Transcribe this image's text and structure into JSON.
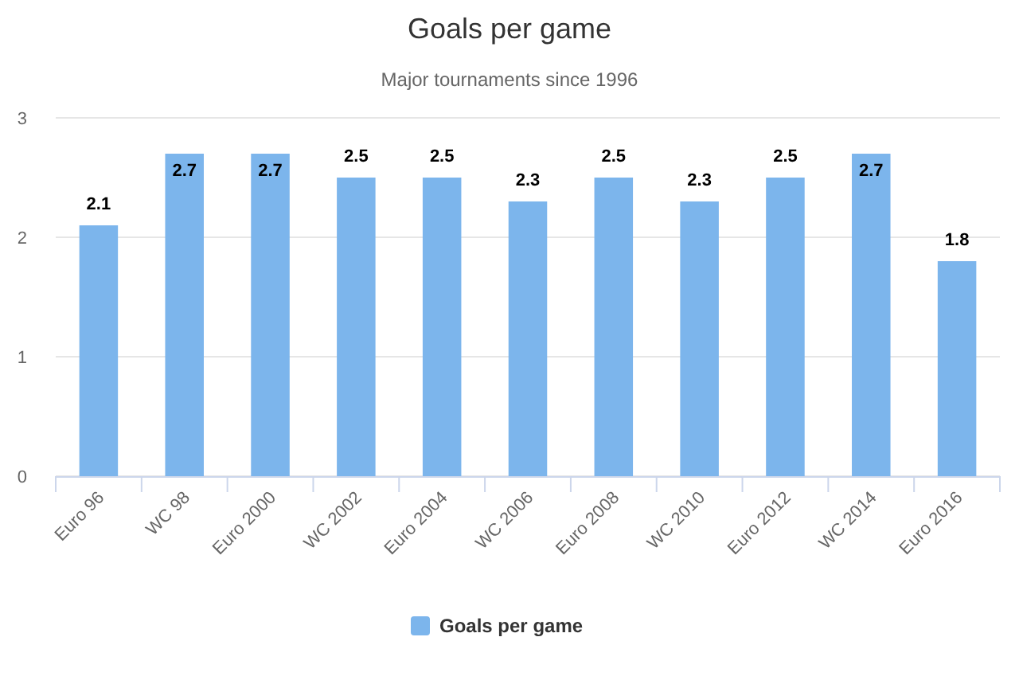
{
  "chart_data": {
    "type": "bar",
    "title": "Goals per game",
    "subtitle": "Major tournaments since 1996",
    "categories": [
      "Euro 96",
      "WC 98",
      "Euro 2000",
      "WC 2002",
      "Euro 2004",
      "WC 2006",
      "Euro 2008",
      "WC 2010",
      "Euro 2012",
      "WC 2014",
      "Euro 2016"
    ],
    "series": [
      {
        "name": "Goals per game",
        "color": "#7cb5ec",
        "values": [
          2.1,
          2.7,
          2.7,
          2.5,
          2.5,
          2.3,
          2.5,
          2.3,
          2.5,
          2.7,
          1.8
        ]
      }
    ],
    "ylim": [
      0,
      3
    ],
    "yticks": [
      0,
      1,
      2,
      3
    ],
    "grid": "y",
    "legend": "bottom",
    "data_labels": true
  }
}
